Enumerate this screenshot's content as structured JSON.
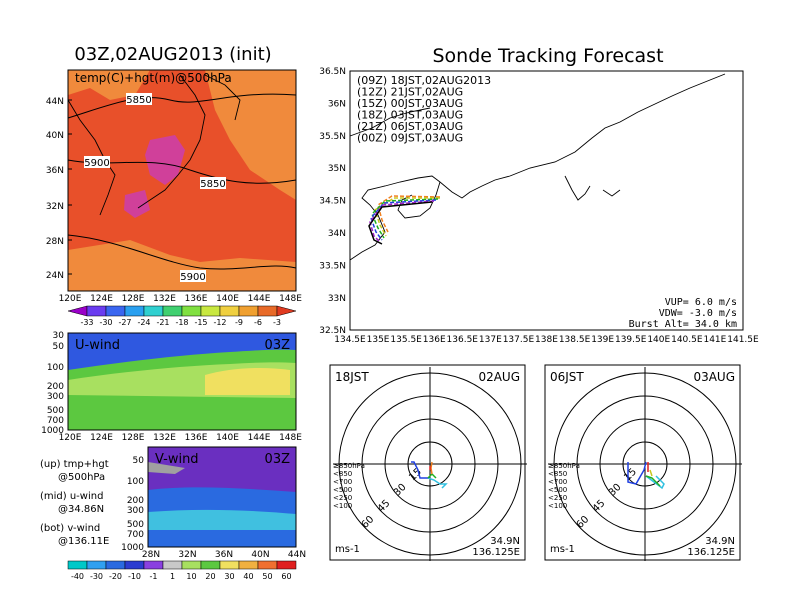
{
  "titles": {
    "left": "03Z,02AUG2013 (init)",
    "right": "Sonde Tracking Forecast"
  },
  "colors": {
    "map_warm": "#e8502a",
    "map_orange": "#f08a3c",
    "map_magenta": "#d0409a",
    "uwind_blue": "#2f58e0",
    "uwind_green": "#5cc840",
    "uwind_lightgreen": "#a8e060",
    "uwind_yellow": "#f0e060",
    "vwind_purple": "#6a2fc0",
    "vwind_blue": "#2a6ae0",
    "vwind_cyan": "#40c0e0"
  },
  "temp_map": {
    "label": "temp(C)+hgt(m)@500hPa",
    "contours": [
      "5850",
      "5900",
      "5850",
      "5900"
    ],
    "lat_ticks": [
      "44N",
      "40N",
      "36N",
      "32N",
      "28N",
      "24N"
    ],
    "lon_ticks": [
      "120E",
      "124E",
      "128E",
      "132E",
      "136E",
      "140E",
      "144E",
      "148E"
    ],
    "colorbar_labels": [
      "-33",
      "-30",
      "-27",
      "-24",
      "-21",
      "-18",
      "-15",
      "-12",
      "-9",
      "-6",
      "-3"
    ],
    "colorbar_colors": [
      "#9a00c8",
      "#6a3cf0",
      "#3a66f0",
      "#2aa0f0",
      "#30d0d0",
      "#40d070",
      "#80e040",
      "#c8e840",
      "#f0d040",
      "#f0a030",
      "#e86a28",
      "#e03a20"
    ]
  },
  "u_wind": {
    "label": "U-wind",
    "time": "03Z",
    "pressure_ticks": [
      "30",
      "50",
      "100",
      "200",
      "300",
      "500",
      "700",
      "1000"
    ],
    "lon_ticks": [
      "120E",
      "124E",
      "128E",
      "132E",
      "136E",
      "140E",
      "144E",
      "148E"
    ]
  },
  "v_wind": {
    "label": "V-wind",
    "time": "03Z",
    "pressure_ticks": [
      "50",
      "100",
      "200",
      "300",
      "500",
      "700",
      "1000"
    ],
    "lat_ticks": [
      "28N",
      "32N",
      "36N",
      "40N",
      "44N"
    ],
    "colorbar_labels": [
      "-40",
      "-30",
      "-20",
      "-10",
      "-1",
      "1",
      "10",
      "20",
      "30",
      "40",
      "50",
      "60"
    ],
    "colorbar_colors": [
      "#00c8c8",
      "#30a0f0",
      "#2a6ae0",
      "#2c3cd0",
      "#8a40e0",
      "#c8c8c8",
      "#a8e060",
      "#5cc840",
      "#f0e060",
      "#f0b040",
      "#f07030",
      "#e02020"
    ]
  },
  "notes": {
    "up_line1": "(up) tmp+hgt",
    "up_line2": "@500hPa",
    "mid_line1": "(mid) u-wind",
    "mid_line2": "@34.86N",
    "bot_line1": "(bot) v-wind",
    "bot_line2": "@136.11E"
  },
  "track_map": {
    "legend": [
      {
        "label": "(09Z) 18JST,02AUG2013",
        "color": "#000000"
      },
      {
        "label": "(12Z) 21JST,02AUG",
        "color": "#a020c8"
      },
      {
        "label": "(15Z) 00JST,03AUG",
        "color": "#2040e0"
      },
      {
        "label": "(18Z) 03JST,03AUG",
        "color": "#20b020"
      },
      {
        "label": "(21Z) 06JST,03AUG",
        "color": "#c8c820"
      },
      {
        "label": "(00Z) 09JST,03AUG",
        "color": "#f08020"
      }
    ],
    "lat_ticks": [
      "36.5N",
      "36N",
      "35.5N",
      "35N",
      "34.5N",
      "34N",
      "33.5N",
      "33N",
      "32.5N"
    ],
    "lon_ticks": [
      "134.5E",
      "135E",
      "135.5E",
      "136E",
      "136.5E",
      "137E",
      "137.5E",
      "138E",
      "138.5E",
      "139E",
      "139.5E",
      "140E",
      "140.5E",
      "141E",
      "141.5E"
    ],
    "vup": "VUP= 6.0 m/s",
    "vdw": "VDW= -3.0 m/s",
    "burst": "Burst Alt= 34.0 km"
  },
  "polar1": {
    "time": "18JST",
    "date": "02AUG",
    "ring_labels": [
      "15",
      "30",
      "45",
      "60"
    ],
    "unit": "ms-1",
    "lat": "34.9N",
    "lon": "136.125E",
    "levels": [
      {
        "label": "≥850hPa",
        "color": "#e02020"
      },
      {
        "label": "<850",
        "color": "#f08020"
      },
      {
        "label": "<700",
        "color": "#c8c820"
      },
      {
        "label": "<500",
        "color": "#20b020"
      },
      {
        "label": "<250",
        "color": "#30c0e0"
      },
      {
        "label": "<100",
        "color": "#2040e0"
      }
    ]
  },
  "polar2": {
    "time": "06JST",
    "date": "03AUG",
    "ring_labels": [
      "15",
      "30",
      "45",
      "60"
    ],
    "unit": "ms-1",
    "lat": "34.9N",
    "lon": "136.125E",
    "levels": [
      {
        "label": "≥850hPa",
        "color": "#e02020"
      },
      {
        "label": "<850",
        "color": "#f08020"
      },
      {
        "label": "<700",
        "color": "#c8c820"
      },
      {
        "label": "<500",
        "color": "#20b020"
      },
      {
        "label": "<250",
        "color": "#30c0e0"
      },
      {
        "label": "<100",
        "color": "#2040e0"
      }
    ]
  }
}
